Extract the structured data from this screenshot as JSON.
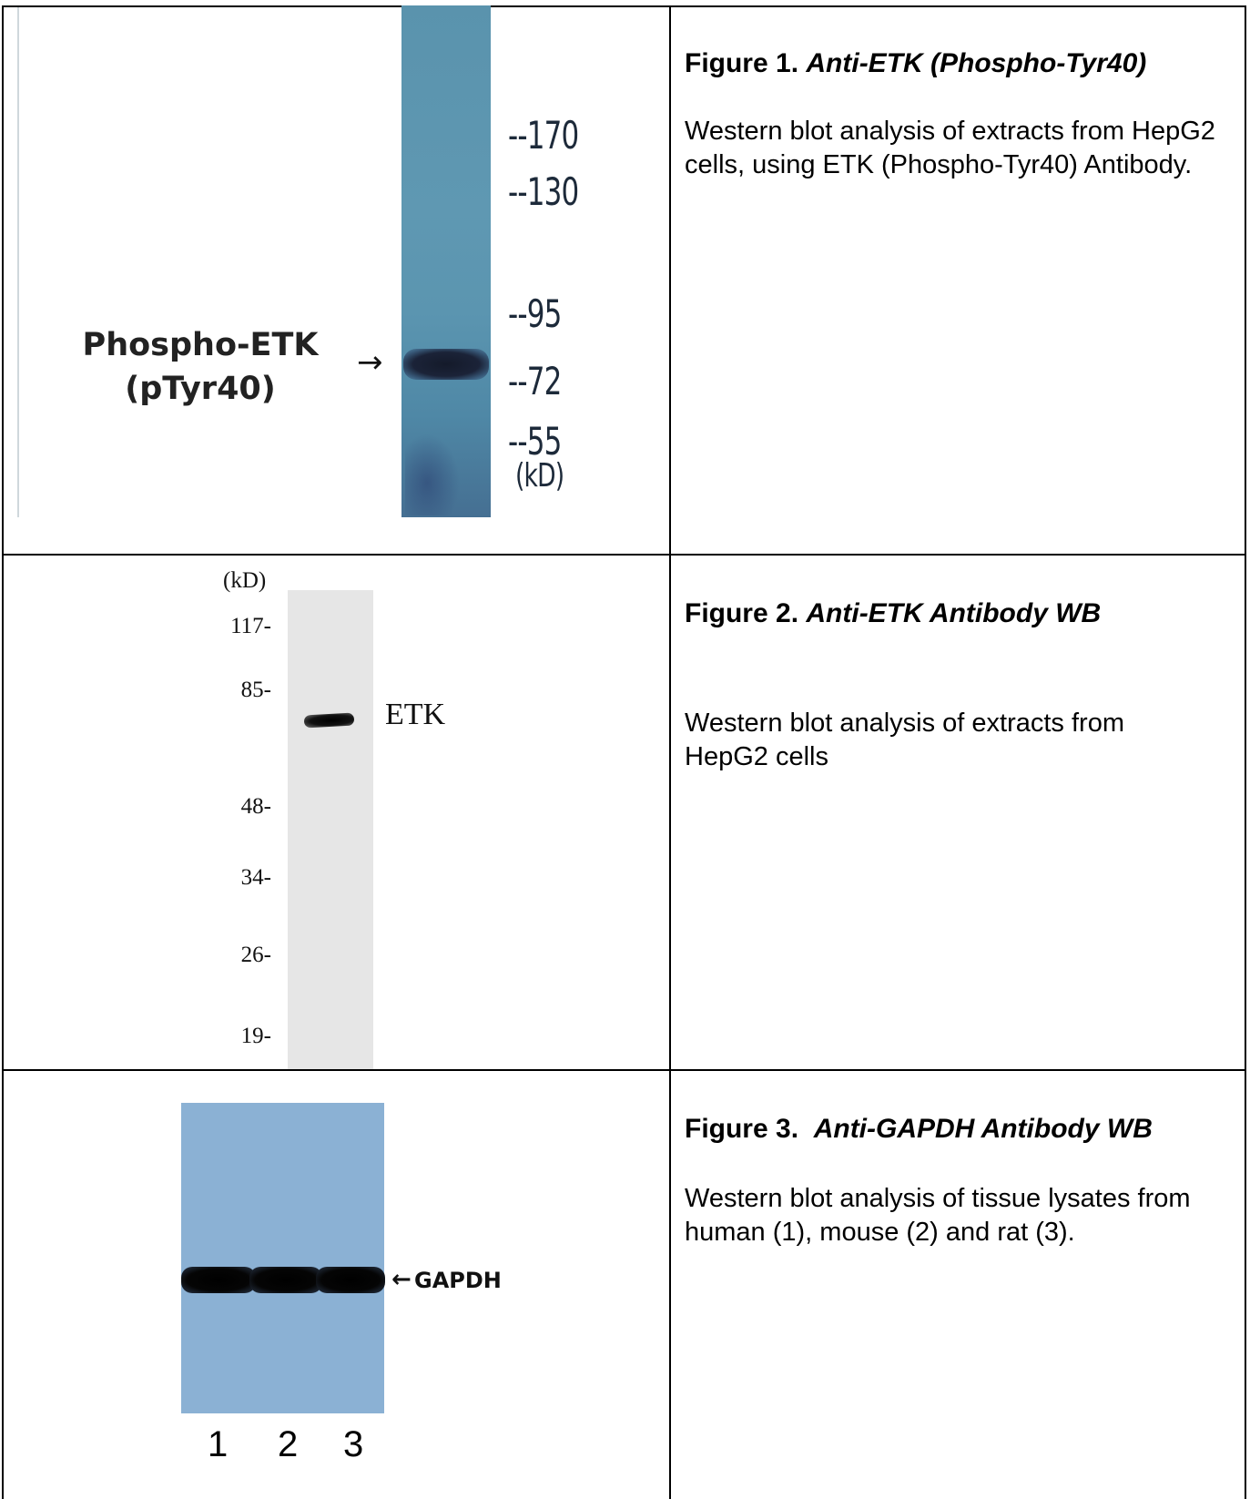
{
  "figures": [
    {
      "title_prefix": "Figure 1.",
      "title_italic": "Anti-ETK (Phospho-Tyr40)",
      "description": "Western blot analysis of extracts from HepG2 cells, using ETK (Phospho-Tyr40) Antibody.",
      "blot": {
        "band_label_line1": "Phospho-ETK",
        "band_label_line2": "(pTyr40)",
        "arrow": "→",
        "markers": [
          "--170",
          "--130",
          "--95",
          "--72",
          "--55"
        ],
        "unit": "(kD)"
      }
    },
    {
      "title_prefix": "Figure 2.",
      "title_italic": "Anti-ETK Antibody WB",
      "description": "Western blot analysis of extracts from HepG2 cells",
      "blot": {
        "unit": "(kD)",
        "markers": [
          "117-",
          "85-",
          "48-",
          "34-",
          "26-",
          "19-"
        ],
        "band_label": "ETK"
      }
    },
    {
      "title_prefix": "Figure 3.",
      "title_italic": "Anti-GAPDH Antibody WB",
      "description": "Western blot analysis of tissue lysates from human (1), mouse (2) and rat (3).",
      "blot": {
        "arrow": "←",
        "band_label": "GAPDH",
        "lanes": [
          "1",
          "2",
          "3"
        ]
      }
    }
  ],
  "colors": {
    "fig1_membrane": "#5a93ad",
    "fig2_membrane": "#e6e6e6",
    "fig3_membrane": "#8bb1d4",
    "band": "#000000"
  }
}
